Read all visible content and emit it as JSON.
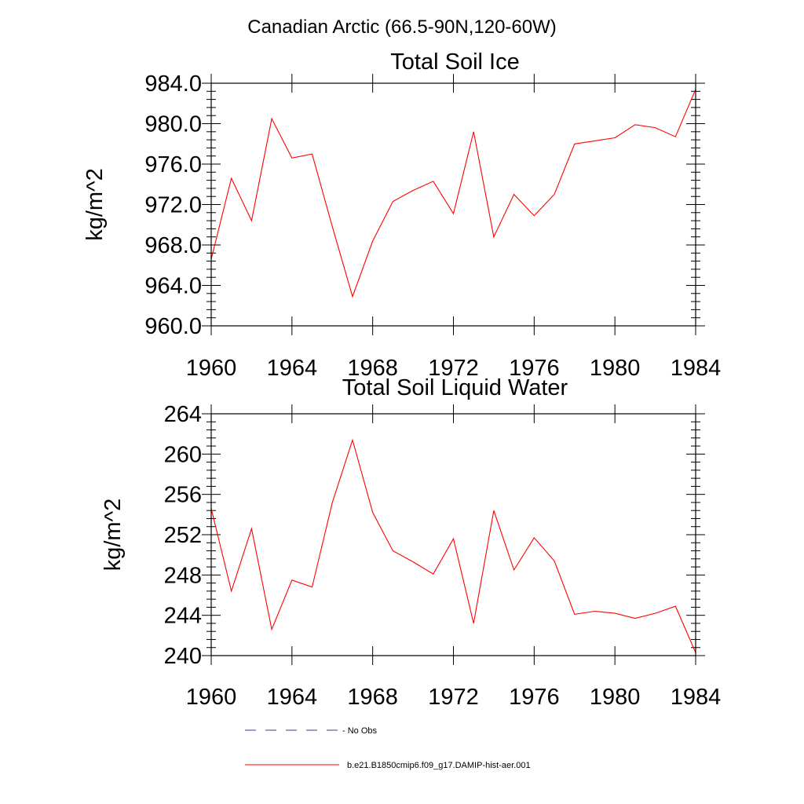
{
  "title": "Canadian Arctic (66.5-90N,120-60W)",
  "chart_data": [
    {
      "type": "line",
      "title": "Total Soil Ice",
      "xlabel": "",
      "ylabel": "kg/m^2",
      "xlim": [
        1960,
        1984
      ],
      "ylim": [
        960,
        984
      ],
      "x_ticks": [
        1960,
        1964,
        1968,
        1972,
        1976,
        1980,
        1984
      ],
      "x_tick_labels": [
        "1960",
        "1964",
        "1968",
        "1972",
        "1976",
        "1980",
        "1984"
      ],
      "y_ticks": [
        960,
        964,
        968,
        972,
        976,
        980,
        984
      ],
      "y_tick_labels": [
        "960.0",
        "964.0",
        "968.0",
        "972.0",
        "976.0",
        "980.0",
        "984.0"
      ],
      "x": [
        1960,
        1961,
        1962,
        1963,
        1964,
        1965,
        1966,
        1967,
        1968,
        1969,
        1970,
        1971,
        1972,
        1973,
        1974,
        1975,
        1976,
        1977,
        1978,
        1979,
        1980,
        1981,
        1982,
        1983,
        1984
      ],
      "series": [
        {
          "name": "b.e21.B1850cmip6.f09_g17.DAMIP-hist-aer.001",
          "color": "#ff0000",
          "values": [
            966.6,
            974.6,
            970.4,
            980.5,
            976.6,
            977.0,
            969.8,
            962.9,
            968.4,
            972.3,
            973.4,
            974.3,
            971.1,
            979.2,
            968.8,
            973.0,
            970.9,
            973.0,
            978.0,
            978.3,
            978.6,
            979.9,
            979.6,
            978.7,
            983.4
          ]
        }
      ]
    },
    {
      "type": "line",
      "title": "Total Soil Liquid Water",
      "xlabel": "",
      "ylabel": "kg/m^2",
      "xlim": [
        1960,
        1984
      ],
      "ylim": [
        240,
        264
      ],
      "x_ticks": [
        1960,
        1964,
        1968,
        1972,
        1976,
        1980,
        1984
      ],
      "x_tick_labels": [
        "1960",
        "1964",
        "1968",
        "1972",
        "1976",
        "1980",
        "1984"
      ],
      "y_ticks": [
        240,
        244,
        248,
        252,
        256,
        260,
        264
      ],
      "y_tick_labels": [
        "240",
        "244",
        "248",
        "252",
        "256",
        "260",
        "264"
      ],
      "x": [
        1960,
        1961,
        1962,
        1963,
        1964,
        1965,
        1966,
        1967,
        1968,
        1969,
        1970,
        1971,
        1972,
        1973,
        1974,
        1975,
        1976,
        1977,
        1978,
        1979,
        1980,
        1981,
        1982,
        1983,
        1984
      ],
      "series": [
        {
          "name": "b.e21.B1850cmip6.f09_g17.DAMIP-hist-aer.001",
          "color": "#ff0000",
          "values": [
            254.6,
            246.4,
            252.6,
            242.6,
            247.5,
            246.8,
            255.2,
            261.4,
            254.2,
            250.4,
            249.3,
            248.1,
            251.6,
            243.2,
            254.4,
            248.5,
            251.7,
            249.4,
            244.1,
            244.4,
            244.2,
            243.7,
            244.2,
            244.9,
            240.3
          ]
        }
      ]
    }
  ],
  "legend": [
    {
      "label": "No Obs",
      "style": "dashed",
      "color": "#3b3b8f"
    },
    {
      "label": "b.e21.B1850cmip6.f09_g17.DAMIP-hist-aer.001",
      "style": "solid",
      "color": "#ff0000"
    }
  ]
}
